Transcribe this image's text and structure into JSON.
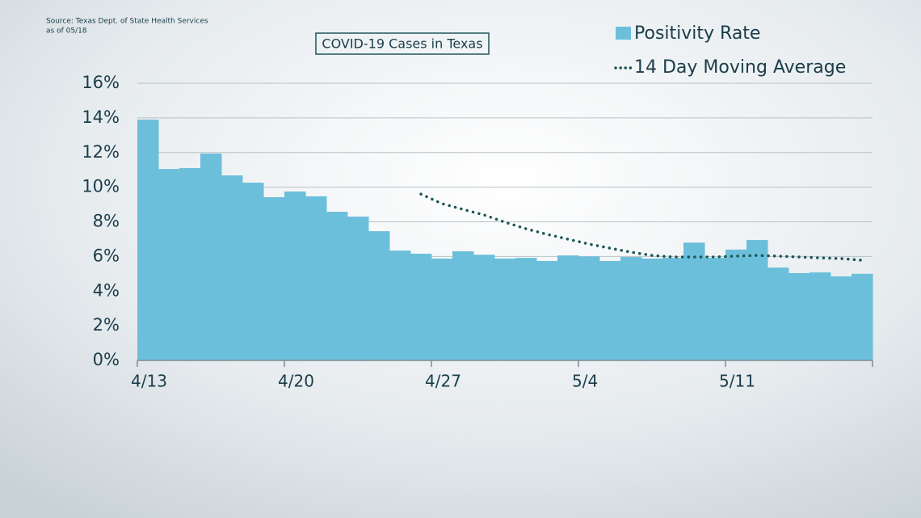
{
  "chart_data": {
    "type": "bar",
    "title": "COVID-19 Cases in Texas",
    "source": "Source: Texas Dept. of State Health Services",
    "as_of": "as of 05/18",
    "categories": [
      "4/13",
      null,
      null,
      null,
      null,
      null,
      null,
      "4/20",
      null,
      null,
      null,
      null,
      null,
      null,
      "4/27",
      null,
      null,
      null,
      null,
      null,
      null,
      "5/4",
      null,
      null,
      null,
      null,
      null,
      null,
      "5/11",
      null,
      null,
      null,
      null,
      null,
      null
    ],
    "series": [
      {
        "name": "Positivity Rate",
        "type": "bar",
        "color": "#6bbfdb",
        "values": [
          13.9,
          11.05,
          11.1,
          11.94,
          10.68,
          10.26,
          9.42,
          9.75,
          9.47,
          8.58,
          8.3,
          7.46,
          6.34,
          6.16,
          5.88,
          6.3,
          6.1,
          5.88,
          5.92,
          5.74,
          6.06,
          6.0,
          5.74,
          5.97,
          5.88,
          5.92,
          6.8,
          5.92,
          6.4,
          6.95,
          5.36,
          5.04,
          5.08,
          4.85,
          5.0
        ]
      },
      {
        "name": "14 Day Moving Average",
        "type": "line",
        "color": "#1e5659",
        "values": [
          null,
          null,
          null,
          null,
          null,
          null,
          null,
          null,
          null,
          null,
          null,
          null,
          null,
          9.6,
          9.05,
          8.72,
          8.4,
          7.98,
          7.6,
          7.28,
          7.0,
          6.72,
          6.48,
          6.25,
          6.06,
          5.97,
          5.97,
          5.97,
          6.02,
          6.06,
          6.02,
          5.97,
          5.92,
          5.88,
          5.78
        ]
      }
    ],
    "ylim": [
      0,
      16
    ],
    "yticks": [
      {
        "value": 0,
        "label": "0%"
      },
      {
        "value": 2,
        "label": "2%"
      },
      {
        "value": 4,
        "label": "4%"
      },
      {
        "value": 6,
        "label": "6%"
      },
      {
        "value": 8,
        "label": "8%"
      },
      {
        "value": 10,
        "label": "10%"
      },
      {
        "value": 12,
        "label": "12%"
      },
      {
        "value": 14,
        "label": "14%"
      },
      {
        "value": 16,
        "label": "16%"
      }
    ],
    "grid": true
  }
}
